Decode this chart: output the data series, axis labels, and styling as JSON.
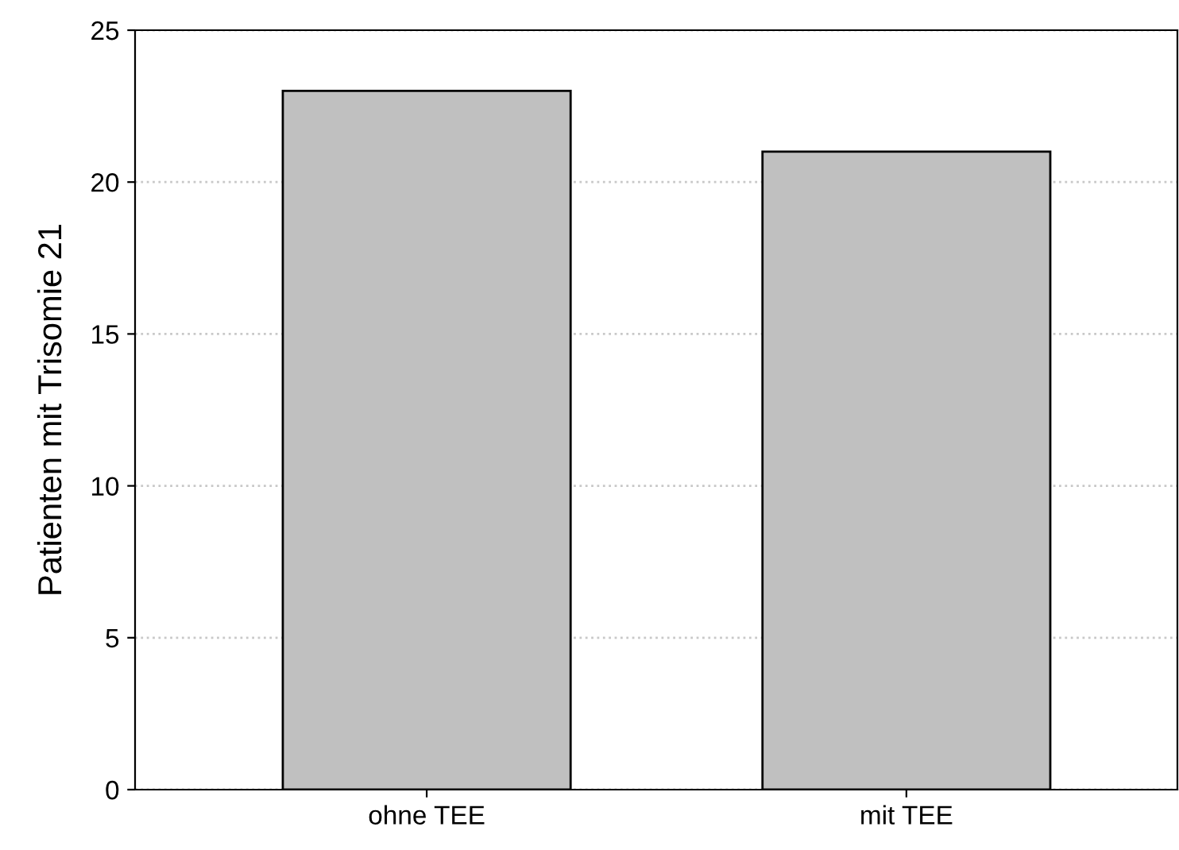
{
  "chart_data": {
    "type": "bar",
    "ylabel": "Patienten mit Trisomie 21",
    "categories": [
      "ohne TEE",
      "mit TEE"
    ],
    "values": [
      23,
      21
    ],
    "color": "#c0c0c0",
    "ylim": [
      0,
      25
    ],
    "yticks": [
      0,
      5,
      10,
      15,
      20,
      25
    ],
    "grid": "y"
  }
}
